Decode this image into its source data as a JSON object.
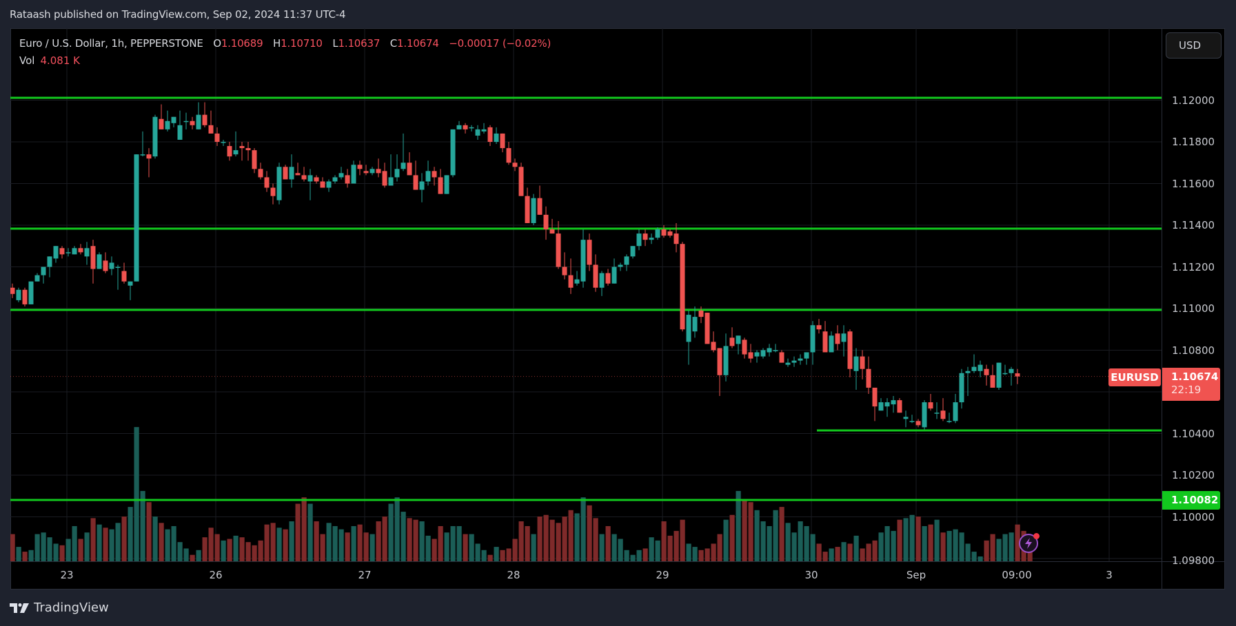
{
  "publisher": "Rataash published on TradingView.com, Sep 02, 2024 11:37 UTC-4",
  "legend": {
    "symbol": "Euro / U.S. Dollar, 1h, PEPPERSTONE",
    "o_label": "O",
    "o": "1.10689",
    "h_label": "H",
    "h": "1.10710",
    "l_label": "L",
    "l": "1.10637",
    "c_label": "C",
    "c": "1.10674",
    "change": "−0.00017 (−0.02%)",
    "vol_label": "Vol",
    "vol": "4.081 K"
  },
  "currency_button": "USD",
  "price_axis": [
    "1.12000",
    "1.11800",
    "1.11600",
    "1.11400",
    "1.11200",
    "1.11000",
    "1.10800",
    "1.10400",
    "1.10200",
    "1.10000",
    "1.09800"
  ],
  "time_axis": [
    "23",
    "26",
    "27",
    "28",
    "29",
    "30",
    "Sep",
    "09:00",
    "3"
  ],
  "symbol_tag": "EURUSD",
  "last_price": "1.10674",
  "countdown": "22:19",
  "level_tag": "1.10082",
  "brand": "TradingView",
  "colors": {
    "up": "#26a69a",
    "down": "#ef5350",
    "vol_up": "#1b5e57",
    "vol_down": "#7f2a2a",
    "level_line": "#12c81e",
    "grid": "#1a1c22"
  },
  "chart_data": {
    "type": "candlestick",
    "title": "Euro / U.S. Dollar, 1h, PEPPERSTONE",
    "xlabel": "",
    "ylabel": "USD",
    "ylim": [
      1.0978,
      1.1215
    ],
    "x_ticks": [
      "23",
      "26",
      "27",
      "28",
      "29",
      "30",
      "Sep",
      "09:00",
      "3"
    ],
    "y_ticks": [
      1.098,
      1.1,
      1.102,
      1.104,
      1.106,
      1.108,
      1.11,
      1.112,
      1.114,
      1.116,
      1.118,
      1.12
    ],
    "horizontal_levels": [
      1.12005,
      1.11385,
      1.10995,
      1.10412,
      1.10082
    ],
    "last": {
      "open": 1.10689,
      "high": 1.1071,
      "low": 1.10637,
      "close": 1.10674,
      "volume": "4.081K"
    },
    "ohlc": [
      [
        1.111,
        1.1112,
        1.1105,
        1.1107
      ],
      [
        1.1104,
        1.111,
        1.1103,
        1.1109
      ],
      [
        1.1109,
        1.111,
        1.1101,
        1.1102
      ],
      [
        1.1102,
        1.1113,
        1.1102,
        1.1113
      ],
      [
        1.1113,
        1.1117,
        1.1113,
        1.1116
      ],
      [
        1.1116,
        1.112,
        1.1112,
        1.112
      ],
      [
        1.112,
        1.1125,
        1.1115,
        1.1125
      ],
      [
        1.1124,
        1.113,
        1.1122,
        1.113
      ],
      [
        1.1129,
        1.113,
        1.1124,
        1.1126
      ],
      [
        1.1127,
        1.1129,
        1.1125,
        1.1127
      ],
      [
        1.1126,
        1.113,
        1.1126,
        1.1129
      ],
      [
        1.1129,
        1.1131,
        1.1126,
        1.1127
      ],
      [
        1.1125,
        1.1132,
        1.1121,
        1.1129
      ],
      [
        1.113,
        1.1133,
        1.1112,
        1.1119
      ],
      [
        1.1119,
        1.1127,
        1.112,
        1.1126
      ],
      [
        1.1123,
        1.1127,
        1.1117,
        1.1118
      ],
      [
        1.1119,
        1.1125,
        1.1116,
        1.1122
      ],
      [
        1.112,
        1.1121,
        1.1109,
        1.112
      ],
      [
        1.1118,
        1.1122,
        1.1112,
        1.1113
      ],
      [
        1.1111,
        1.1113,
        1.1104,
        1.1113
      ],
      [
        1.1113,
        1.1173,
        1.1113,
        1.1174
      ],
      [
        1.1174,
        1.1185,
        1.1173,
        1.1174
      ],
      [
        1.1174,
        1.1177,
        1.1163,
        1.1172
      ],
      [
        1.1173,
        1.1193,
        1.1172,
        1.1192
      ],
      [
        1.1191,
        1.1198,
        1.1186,
        1.1186
      ],
      [
        1.1186,
        1.1195,
        1.1185,
        1.119
      ],
      [
        1.1189,
        1.1192,
        1.1187,
        1.1192
      ],
      [
        1.1181,
        1.1195,
        1.1181,
        1.1188
      ],
      [
        1.119,
        1.1194,
        1.1186,
        1.119
      ],
      [
        1.119,
        1.1192,
        1.1186,
        1.1188
      ],
      [
        1.1186,
        1.1199,
        1.1186,
        1.1193
      ],
      [
        1.1193,
        1.1199,
        1.1187,
        1.1188
      ],
      [
        1.1188,
        1.1195,
        1.1185,
        1.1184
      ],
      [
        1.1184,
        1.1187,
        1.1178,
        1.118
      ],
      [
        1.118,
        1.1181,
        1.1178,
        1.118
      ],
      [
        1.1178,
        1.118,
        1.1171,
        1.1173
      ],
      [
        1.1174,
        1.1185,
        1.1173,
        1.1176
      ],
      [
        1.1178,
        1.118,
        1.1171,
        1.1177
      ],
      [
        1.1177,
        1.118,
        1.1171,
        1.1176
      ],
      [
        1.1176,
        1.1177,
        1.1165,
        1.1167
      ],
      [
        1.1167,
        1.117,
        1.1162,
        1.1163
      ],
      [
        1.1163,
        1.1166,
        1.1156,
        1.1158
      ],
      [
        1.1158,
        1.116,
        1.115,
        1.1154
      ],
      [
        1.1152,
        1.117,
        1.115,
        1.1168
      ],
      [
        1.1168,
        1.1169,
        1.1162,
        1.1162
      ],
      [
        1.1162,
        1.1174,
        1.1158,
        1.1168
      ],
      [
        1.1165,
        1.117,
        1.1164,
        1.1164
      ],
      [
        1.1164,
        1.1168,
        1.1161,
        1.1162
      ],
      [
        1.1161,
        1.1167,
        1.1152,
        1.1164
      ],
      [
        1.1163,
        1.1164,
        1.116,
        1.1161
      ],
      [
        1.1161,
        1.1163,
        1.1158,
        1.1158
      ],
      [
        1.1158,
        1.1162,
        1.1156,
        1.1161
      ],
      [
        1.1161,
        1.1164,
        1.116,
        1.1163
      ],
      [
        1.1163,
        1.1168,
        1.1162,
        1.1165
      ],
      [
        1.1164,
        1.1167,
        1.1158,
        1.116
      ],
      [
        1.116,
        1.1171,
        1.116,
        1.1169
      ],
      [
        1.1169,
        1.1171,
        1.1164,
        1.1167
      ],
      [
        1.1166,
        1.1169,
        1.1164,
        1.1165
      ],
      [
        1.1165,
        1.1168,
        1.1164,
        1.1167
      ],
      [
        1.1167,
        1.1172,
        1.1163,
        1.1165
      ],
      [
        1.1166,
        1.117,
        1.1158,
        1.1159
      ],
      [
        1.1159,
        1.1174,
        1.1159,
        1.1163
      ],
      [
        1.1163,
        1.1174,
        1.1161,
        1.1167
      ],
      [
        1.1167,
        1.1184,
        1.1166,
        1.117
      ],
      [
        1.117,
        1.1175,
        1.1164,
        1.1164
      ],
      [
        1.1164,
        1.1171,
        1.1157,
        1.1157
      ],
      [
        1.1157,
        1.1165,
        1.1151,
        1.1161
      ],
      [
        1.1161,
        1.1171,
        1.1159,
        1.1166
      ],
      [
        1.1166,
        1.1168,
        1.1159,
        1.1163
      ],
      [
        1.1163,
        1.1167,
        1.1155,
        1.1155
      ],
      [
        1.1155,
        1.1164,
        1.1155,
        1.1164
      ],
      [
        1.1164,
        1.1186,
        1.1163,
        1.1186
      ],
      [
        1.1186,
        1.119,
        1.1186,
        1.1188
      ],
      [
        1.1188,
        1.1189,
        1.1184,
        1.1186
      ],
      [
        1.1187,
        1.1188,
        1.1185,
        1.1187
      ],
      [
        1.1183,
        1.1188,
        1.1181,
        1.1186
      ],
      [
        1.1185,
        1.1189,
        1.1184,
        1.1186
      ],
      [
        1.1187,
        1.1188,
        1.1178,
        1.118
      ],
      [
        1.118,
        1.1187,
        1.1179,
        1.1184
      ],
      [
        1.1184,
        1.1184,
        1.1175,
        1.1177
      ],
      [
        1.1177,
        1.118,
        1.1169,
        1.117
      ],
      [
        1.117,
        1.1172,
        1.1166,
        1.1168
      ],
      [
        1.1168,
        1.117,
        1.116,
        1.1154
      ],
      [
        1.1154,
        1.1158,
        1.1141,
        1.1141
      ],
      [
        1.1141,
        1.1155,
        1.114,
        1.1153
      ],
      [
        1.1153,
        1.1159,
        1.1145,
        1.1145
      ],
      [
        1.1145,
        1.1149,
        1.1133,
        1.1138
      ],
      [
        1.1138,
        1.1143,
        1.1136,
        1.1136
      ],
      [
        1.1136,
        1.1142,
        1.1119,
        1.112
      ],
      [
        1.112,
        1.1127,
        1.1114,
        1.1116
      ],
      [
        1.1116,
        1.1124,
        1.1107,
        1.111
      ],
      [
        1.1112,
        1.1118,
        1.1111,
        1.1114
      ],
      [
        1.1113,
        1.1138,
        1.111,
        1.1133
      ],
      [
        1.1133,
        1.1136,
        1.1118,
        1.1121
      ],
      [
        1.1121,
        1.1126,
        1.1108,
        1.111
      ],
      [
        1.111,
        1.1118,
        1.1106,
        1.1117
      ],
      [
        1.1117,
        1.1119,
        1.1111,
        1.1112
      ],
      [
        1.1112,
        1.1124,
        1.1112,
        1.112
      ],
      [
        1.112,
        1.1122,
        1.1118,
        1.1121
      ],
      [
        1.1121,
        1.1126,
        1.1118,
        1.1125
      ],
      [
        1.1125,
        1.113,
        1.1124,
        1.113
      ],
      [
        1.113,
        1.1138,
        1.1128,
        1.1136
      ],
      [
        1.1136,
        1.1138,
        1.113,
        1.1133
      ],
      [
        1.1133,
        1.1136,
        1.1131,
        1.1134
      ],
      [
        1.1134,
        1.1139,
        1.1133,
        1.1138
      ],
      [
        1.1138,
        1.114,
        1.1134,
        1.1135
      ],
      [
        1.1137,
        1.1138,
        1.1134,
        1.1135
      ],
      [
        1.1136,
        1.1141,
        1.1127,
        1.1131
      ],
      [
        1.1131,
        1.1132,
        1.1089,
        1.109
      ],
      [
        1.1084,
        1.1099,
        1.1073,
        1.1097
      ],
      [
        1.1089,
        1.1101,
        1.1086,
        1.1096
      ],
      [
        1.1099,
        1.1101,
        1.1093,
        1.1096
      ],
      [
        1.1098,
        1.1097,
        1.1085,
        1.1083
      ],
      [
        1.1084,
        1.1089,
        1.1079,
        1.108
      ],
      [
        1.1081,
        1.1078,
        1.1058,
        1.1068
      ],
      [
        1.1068,
        1.1088,
        1.1065,
        1.1082
      ],
      [
        1.1086,
        1.1091,
        1.1081,
        1.1082
      ],
      [
        1.1083,
        1.1087,
        1.1078,
        1.1087
      ],
      [
        1.1085,
        1.1086,
        1.1076,
        1.1078
      ],
      [
        1.1079,
        1.1083,
        1.1074,
        1.1076
      ],
      [
        1.1077,
        1.108,
        1.1074,
        1.1079
      ],
      [
        1.1077,
        1.1081,
        1.1076,
        1.108
      ],
      [
        1.1079,
        1.1083,
        1.1077,
        1.1081
      ],
      [
        1.108,
        1.1083,
        1.1079,
        1.108
      ],
      [
        1.1079,
        1.108,
        1.1076,
        1.1074
      ],
      [
        1.1073,
        1.1076,
        1.1072,
        1.1074
      ],
      [
        1.1074,
        1.1077,
        1.1072,
        1.1075
      ],
      [
        1.1075,
        1.1078,
        1.1073,
        1.1076
      ],
      [
        1.1076,
        1.1078,
        1.1073,
        1.1079
      ],
      [
        1.1079,
        1.1094,
        1.1073,
        1.1092
      ],
      [
        1.1092,
        1.1095,
        1.1088,
        1.109
      ],
      [
        1.1089,
        1.1094,
        1.1079,
        1.1079
      ],
      [
        1.1079,
        1.1089,
        1.108,
        1.1087
      ],
      [
        1.1088,
        1.1092,
        1.108,
        1.1083
      ],
      [
        1.1084,
        1.1092,
        1.1077,
        1.1088
      ],
      [
        1.1089,
        1.109,
        1.1067,
        1.1071
      ],
      [
        1.107,
        1.1081,
        1.1061,
        1.1077
      ],
      [
        1.1077,
        1.108,
        1.1066,
        1.1071
      ],
      [
        1.1071,
        1.1077,
        1.1059,
        1.1062
      ],
      [
        1.1062,
        1.1061,
        1.1046,
        1.1053
      ],
      [
        1.1051,
        1.1057,
        1.1051,
        1.1055
      ],
      [
        1.1053,
        1.1057,
        1.1048,
        1.1055
      ],
      [
        1.1054,
        1.1058,
        1.105,
        1.1056
      ],
      [
        1.1056,
        1.1057,
        1.105,
        1.105
      ],
      [
        1.1047,
        1.1051,
        1.1043,
        1.1048
      ],
      [
        1.1046,
        1.1049,
        1.1045,
        1.1046
      ],
      [
        1.1046,
        1.1047,
        1.1043,
        1.1044
      ],
      [
        1.1043,
        1.1056,
        1.1042,
        1.1055
      ],
      [
        1.1055,
        1.1059,
        1.1051,
        1.1052
      ],
      [
        1.105,
        1.1055,
        1.1047,
        1.105
      ],
      [
        1.1051,
        1.1057,
        1.1046,
        1.1047
      ],
      [
        1.1046,
        1.105,
        1.1045,
        1.1046
      ],
      [
        1.1046,
        1.1059,
        1.1045,
        1.1055
      ],
      [
        1.1055,
        1.1071,
        1.1052,
        1.1069
      ],
      [
        1.1069,
        1.1072,
        1.1058,
        1.107
      ],
      [
        1.107,
        1.1078,
        1.1069,
        1.1072
      ],
      [
        1.107,
        1.1075,
        1.1067,
        1.1073
      ],
      [
        1.1071,
        1.1073,
        1.1063,
        1.1068
      ],
      [
        1.1068,
        1.1073,
        1.1062,
        1.1062
      ],
      [
        1.1062,
        1.1074,
        1.1061,
        1.1074
      ],
      [
        1.1069,
        1.1073,
        1.1068,
        1.1069
      ],
      [
        1.1069,
        1.1072,
        1.1063,
        1.1071
      ],
      [
        1.10689,
        1.1071,
        1.10637,
        1.10674
      ]
    ],
    "volume": [
      34,
      18,
      12,
      14,
      34,
      36,
      30,
      22,
      20,
      28,
      44,
      28,
      36,
      54,
      46,
      42,
      40,
      48,
      56,
      68,
      168,
      88,
      74,
      56,
      48,
      40,
      44,
      24,
      16,
      8,
      14,
      30,
      42,
      34,
      26,
      28,
      32,
      30,
      24,
      20,
      26,
      46,
      48,
      42,
      40,
      50,
      72,
      80,
      72,
      50,
      34,
      48,
      44,
      40,
      36,
      44,
      46,
      36,
      34,
      50,
      56,
      72,
      80,
      62,
      54,
      52,
      50,
      32,
      28,
      44,
      36,
      44,
      44,
      34,
      34,
      22,
      14,
      8,
      18,
      14,
      16,
      28,
      50,
      44,
      34,
      56,
      58,
      52,
      48,
      56,
      64,
      60,
      80,
      70,
      54,
      34,
      44,
      34,
      28,
      14,
      8,
      14,
      16,
      30,
      26,
      50,
      32,
      38,
      52,
      22,
      18,
      14,
      16,
      22,
      34,
      52,
      58,
      88,
      78,
      74,
      64,
      50,
      44,
      64,
      68,
      48,
      36,
      50,
      44,
      34,
      22,
      12,
      16,
      18,
      24,
      22,
      32,
      16,
      22,
      26,
      36,
      44,
      38,
      52,
      54,
      58,
      56,
      44,
      46,
      52,
      36,
      38,
      40,
      36,
      22,
      12,
      6,
      26,
      34,
      28,
      34,
      36,
      46,
      38,
      16
    ]
  }
}
